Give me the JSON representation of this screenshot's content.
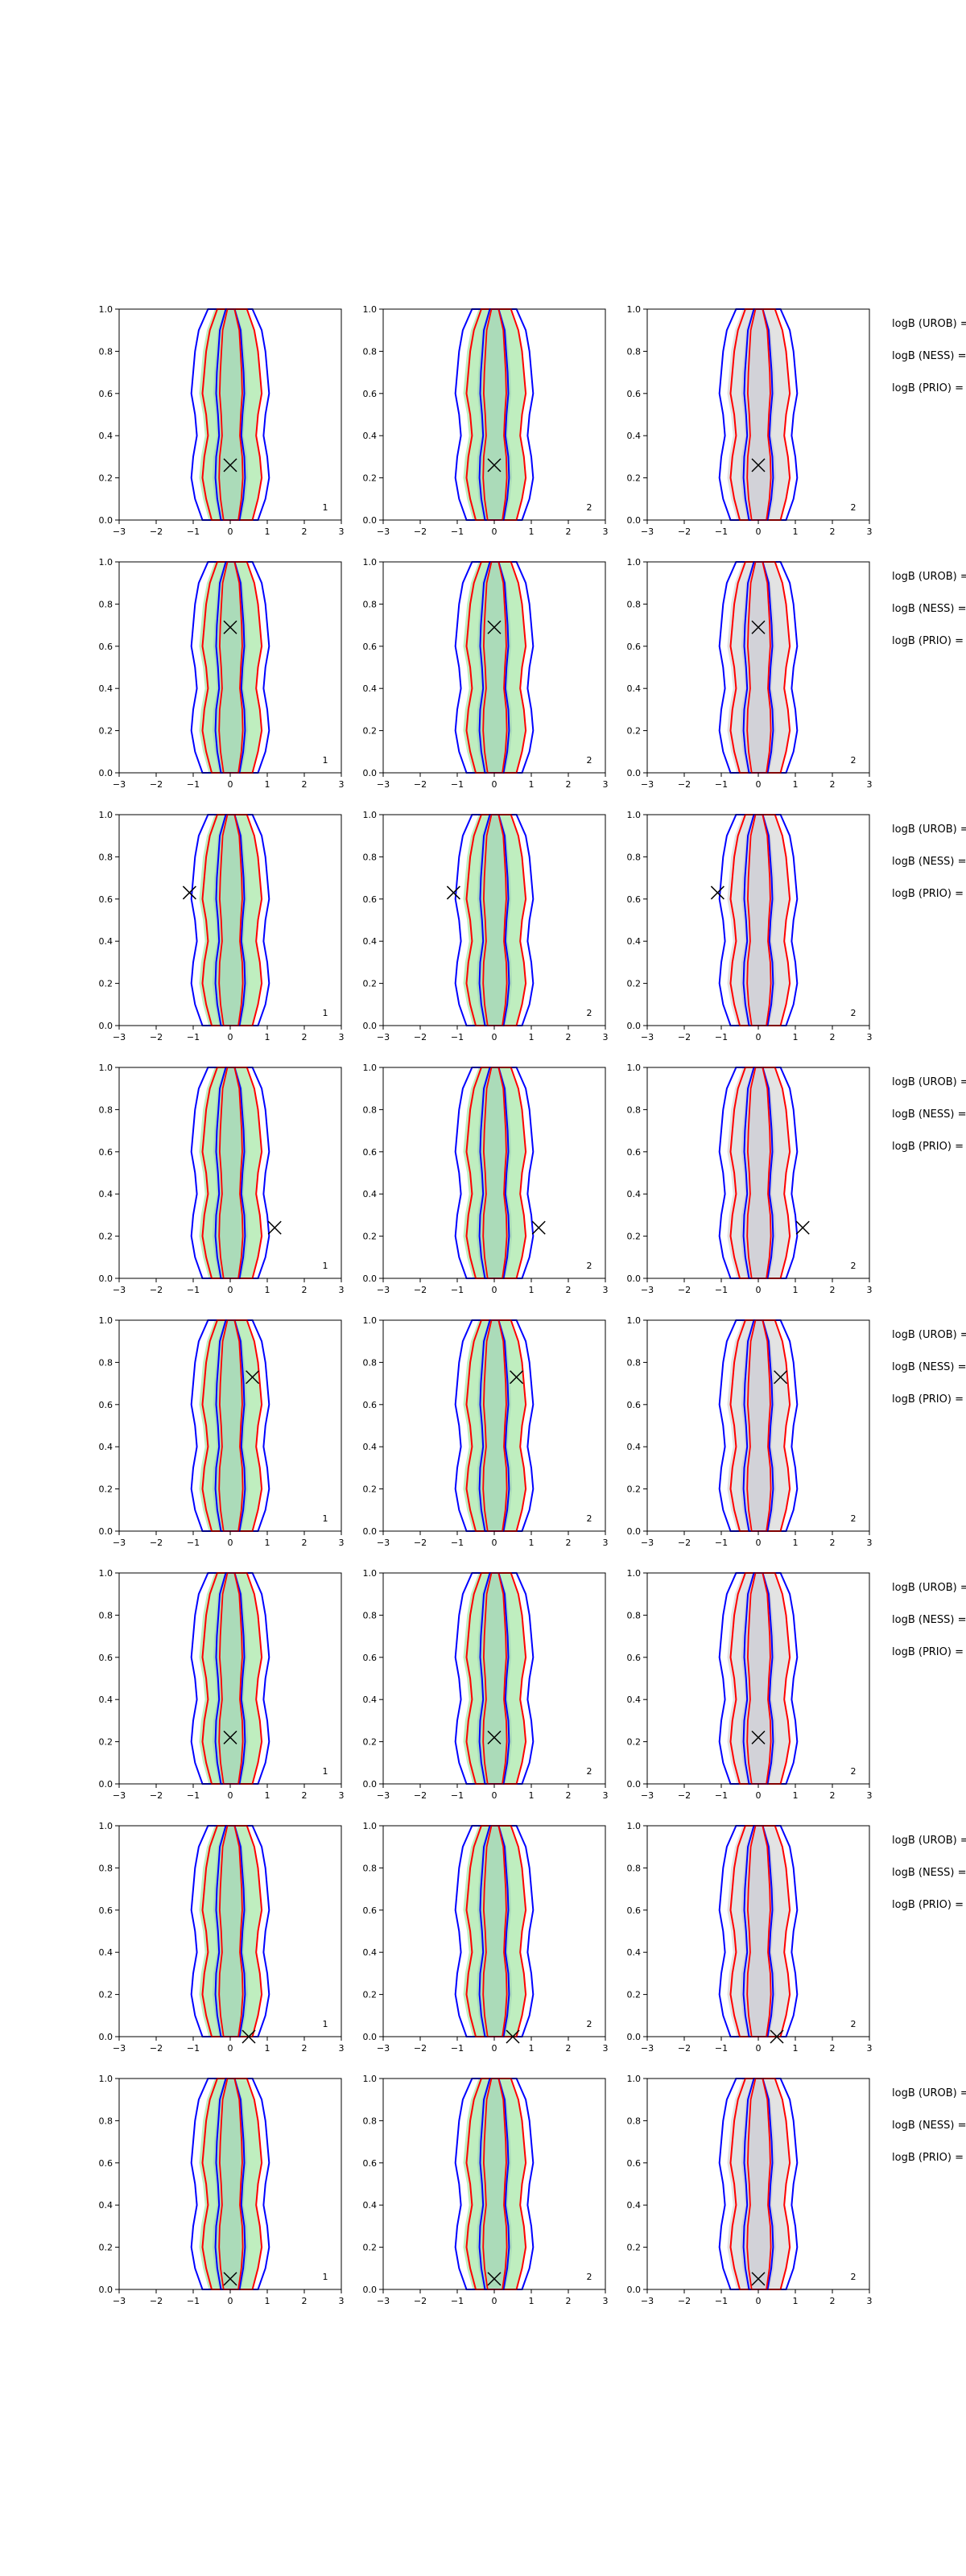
{
  "chart_data": {
    "type": "contour-grid",
    "rows": 8,
    "cols": 3,
    "xlim": [
      -3,
      3
    ],
    "ylim": [
      0,
      1
    ],
    "xticks": [
      "−3",
      "−2",
      "−1",
      "0",
      "1",
      "2",
      "3"
    ],
    "yticks": [
      "0.0",
      "0.2",
      "0.4",
      "0.6",
      "0.8",
      "1.0"
    ],
    "corner_labels": [
      "1",
      "2",
      "2"
    ],
    "side_labels": [
      "logB (UROB) =",
      "logB (NESS) =",
      "logB (PRIO) ="
    ],
    "colors": {
      "outer": "#0000ff",
      "inner": "#ff0000",
      "fill_green": "#b8ecb8",
      "fill_grey": "#e0e0e0",
      "marker": "#000000"
    },
    "markers": [
      {
        "x": 0.0,
        "y": 0.26
      },
      {
        "x": 0.0,
        "y": 0.69
      },
      {
        "x": -1.1,
        "y": 0.63
      },
      {
        "x": 1.2,
        "y": 0.24
      },
      {
        "x": 0.6,
        "y": 0.73
      },
      {
        "x": 0.0,
        "y": 0.22
      },
      {
        "x": 0.5,
        "y": 0.0
      },
      {
        "x": 0.0,
        "y": 0.05
      }
    ]
  }
}
